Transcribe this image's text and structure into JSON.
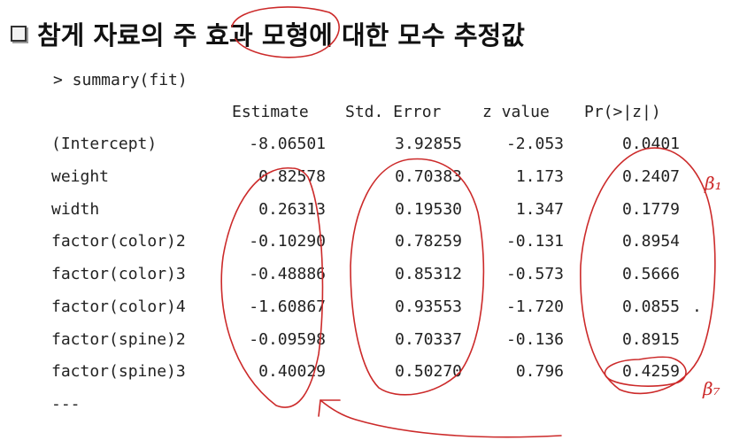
{
  "slide": {
    "title": "참게 자료의 주 효과 모형에 대한 모수 추정값"
  },
  "console": {
    "command": "> summary(fit)",
    "headers": [
      "Estimate",
      "Std. Error",
      "z value",
      "Pr(>|z|)"
    ],
    "rows": [
      {
        "name": "(Intercept)",
        "estimate": "-8.06501",
        "std_error": "3.92855",
        "z_value": "-2.053",
        "p_value": "0.0401"
      },
      {
        "name": "weight",
        "estimate": "0.82578",
        "std_error": "0.70383",
        "z_value": "1.173",
        "p_value": "0.2407"
      },
      {
        "name": "width",
        "estimate": "0.26313",
        "std_error": "0.19530",
        "z_value": "1.347",
        "p_value": "0.1779"
      },
      {
        "name": "factor(color)2",
        "estimate": "-0.10290",
        "std_error": "0.78259",
        "z_value": "-0.131",
        "p_value": "0.8954"
      },
      {
        "name": "factor(color)3",
        "estimate": "-0.48886",
        "std_error": "0.85312",
        "z_value": "-0.573",
        "p_value": "0.5666"
      },
      {
        "name": "factor(color)4",
        "estimate": "-1.60867",
        "std_error": "0.93553",
        "z_value": "-1.720",
        "p_value": "0.0855"
      },
      {
        "name": "factor(spine)2",
        "estimate": "-0.09598",
        "std_error": "0.70337",
        "z_value": "-0.136",
        "p_value": "0.8915"
      },
      {
        "name": "factor(spine)3",
        "estimate": "0.40029",
        "std_error": "0.50270",
        "z_value": "0.796",
        "p_value": "0.4259"
      }
    ],
    "footer": "---",
    "trailing_mark": "."
  },
  "annotations": {
    "beta_1": "β₁",
    "beta_7": "β₇",
    "ink_color": "#cc2a2a"
  }
}
